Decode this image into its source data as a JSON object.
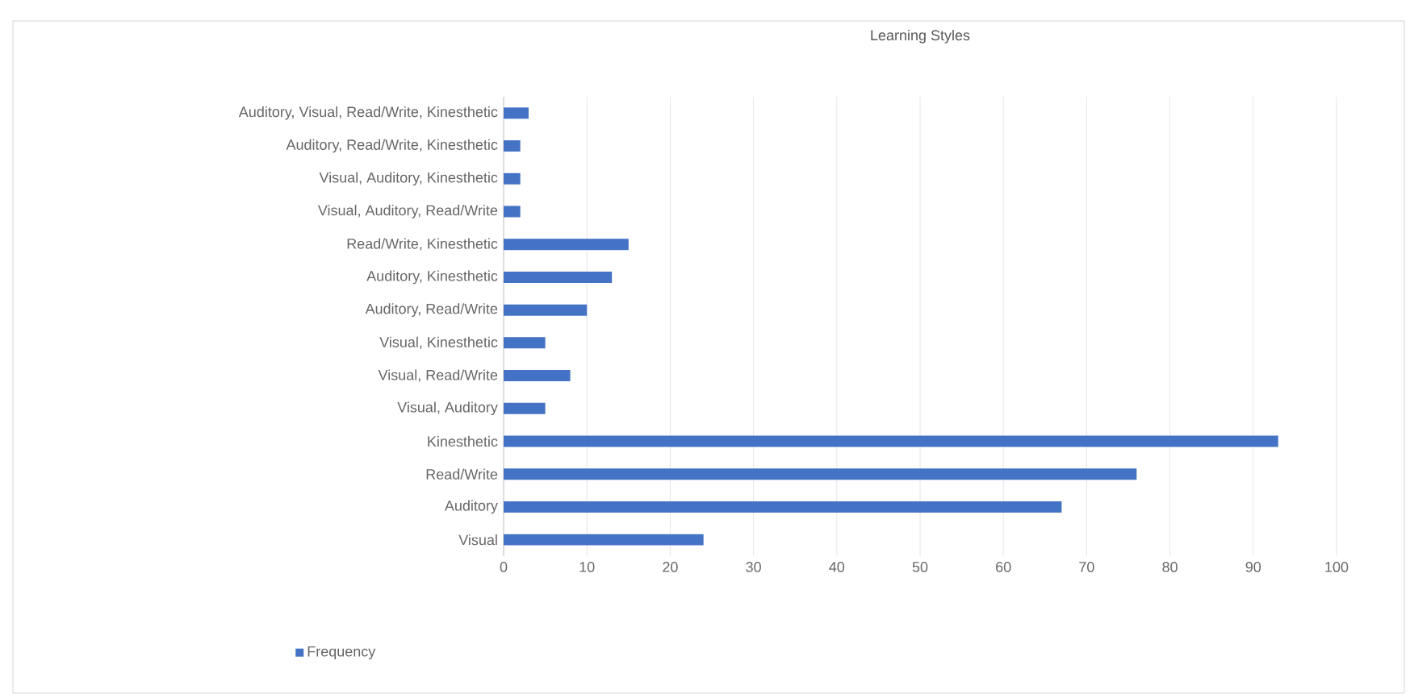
{
  "chart_data": {
    "type": "bar",
    "orientation": "horizontal",
    "title": "Learning Styles",
    "categories": [
      "Auditory, Visual, Read/Write, Kinesthetic",
      "Auditory, Read/Write, Kinesthetic",
      "Visual, Auditory, Kinesthetic",
      "Visual, Auditory, Read/Write",
      "Read/Write, Kinesthetic",
      "Auditory, Kinesthetic",
      "Auditory, Read/Write",
      "Visual, Kinesthetic",
      "Visual, Read/Write",
      "Visual, Auditory",
      "Kinesthetic",
      "Read/Write",
      "Auditory",
      "Visual"
    ],
    "series": [
      {
        "name": "Frequency",
        "color": "#4472c4",
        "values": [
          3,
          2,
          2,
          2,
          15,
          13,
          10,
          5,
          8,
          5,
          93,
          76,
          67,
          24
        ]
      }
    ],
    "xlim": [
      0,
      100
    ],
    "xticks": [
      0,
      10,
      20,
      30,
      40,
      50,
      60,
      70,
      80,
      90,
      100
    ],
    "grid": "x",
    "legend": "bottom left"
  }
}
